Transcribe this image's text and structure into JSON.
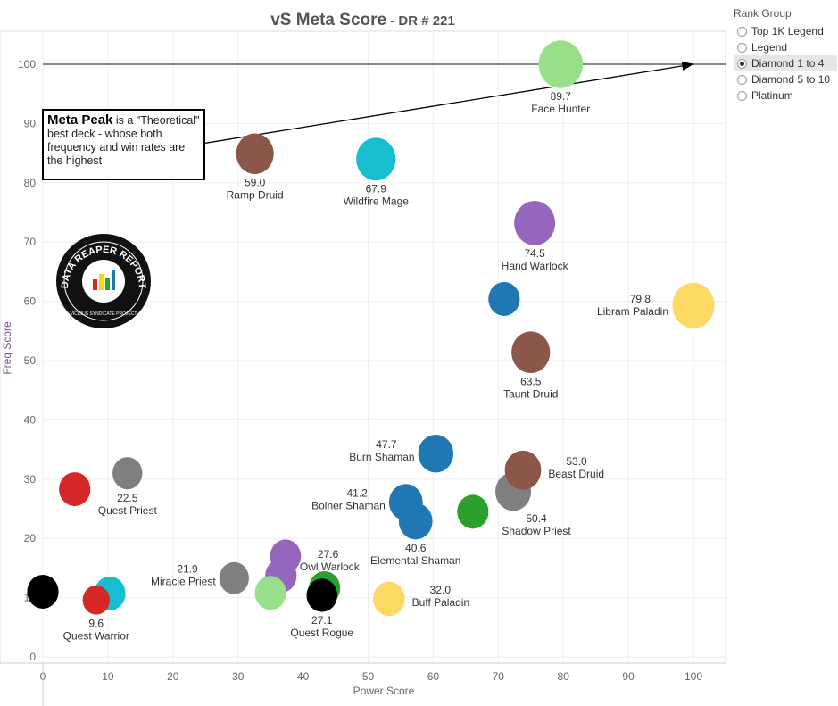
{
  "title": {
    "main": "vS Meta Score",
    "sub": " - DR # 221"
  },
  "legend": {
    "title": "Rank Group",
    "options": [
      {
        "label": "Top 1K Legend",
        "selected": false
      },
      {
        "label": "Legend",
        "selected": false
      },
      {
        "label": "Diamond 1 to 4",
        "selected": true
      },
      {
        "label": "Diamond 5 to 10",
        "selected": false
      },
      {
        "label": "Platinum",
        "selected": false
      }
    ]
  },
  "annotation": {
    "bold": "Meta Peak",
    "text": " is a \"Theoretical\" best deck - whose both frequency and win rates are the highest"
  },
  "logo": {
    "text": "DATA REAPER REPORT",
    "subtext": "VICIOUS SYNDICATE PROJECT"
  },
  "chart_data": {
    "type": "scatter",
    "title": "vS Meta Score - DR # 221",
    "xlabel": "Power Score",
    "ylabel": "Freq Score",
    "xlim": [
      0,
      105
    ],
    "ylim": [
      0,
      104
    ],
    "xticks": [
      0,
      10,
      20,
      30,
      40,
      50,
      60,
      70,
      80,
      90,
      100
    ],
    "yticks": [
      0,
      10,
      20,
      30,
      40,
      50,
      60,
      70,
      80,
      90,
      100
    ],
    "grid": true,
    "reference_line": {
      "y": 100
    },
    "points": [
      {
        "name": "Face Hunter",
        "score": "89.7",
        "x": 79.6,
        "y": 100,
        "color": "#98df8a",
        "label": "below"
      },
      {
        "name": "Ramp Druid",
        "score": "59.0",
        "x": 32.6,
        "y": 84.9,
        "color": "#8c564b",
        "label": "below"
      },
      {
        "name": "Wildfire Mage",
        "score": "67.9",
        "x": 51.2,
        "y": 84.0,
        "color": "#17becf",
        "label": "below"
      },
      {
        "name": "Hand Warlock",
        "score": "74.5",
        "x": 75.6,
        "y": 73.2,
        "color": "#9467bd",
        "label": "below"
      },
      {
        "name": "",
        "score": "",
        "x": 70.9,
        "y": 60.4,
        "color": "#1f77b4",
        "label": "none"
      },
      {
        "name": "Libram Paladin",
        "score": "79.8",
        "x": 100,
        "y": 59.3,
        "color": "#ffd966",
        "label": "left"
      },
      {
        "name": "Taunt Druid",
        "score": "63.5",
        "x": 75.0,
        "y": 51.4,
        "color": "#8c564b",
        "label": "below"
      },
      {
        "name": "Burn Shaman",
        "score": "47.7",
        "x": 60.4,
        "y": 34.3,
        "color": "#1f77b4",
        "label": "left"
      },
      {
        "name": "Shadow Priest",
        "score": "50.4",
        "x": 72.3,
        "y": 27.9,
        "color": "#7f7f7f",
        "label": "below-right"
      },
      {
        "name": "Beast Druid",
        "score": "53.0",
        "x": 73.8,
        "y": 31.5,
        "color": "#8c564b",
        "label": "right"
      },
      {
        "name": "",
        "score": "",
        "x": 66.1,
        "y": 24.5,
        "color": "#2ca02c",
        "label": "none"
      },
      {
        "name": "Bolner Shaman",
        "score": "41.2",
        "x": 55.8,
        "y": 26.1,
        "color": "#1f77b4",
        "label": "left"
      },
      {
        "name": "Elemental Shaman",
        "score": "40.6",
        "x": 57.3,
        "y": 22.9,
        "color": "#1f77b4",
        "label": "below"
      },
      {
        "name": "Quest Priest",
        "score": "22.5",
        "x": 13.0,
        "y": 31.0,
        "color": "#7f7f7f",
        "label": "below"
      },
      {
        "name": "",
        "score": "",
        "x": 4.9,
        "y": 28.3,
        "color": "#d62728",
        "label": "none"
      },
      {
        "name": "Owl Warlock",
        "score": "27.6",
        "x": 37.3,
        "y": 17.0,
        "color": "#9467bd",
        "label": "right"
      },
      {
        "name": "",
        "score": "",
        "x": 36.6,
        "y": 13.7,
        "color": "#9467bd",
        "label": "none"
      },
      {
        "name": "Miracle Priest",
        "score": "21.9",
        "x": 29.4,
        "y": 13.3,
        "color": "#7f7f7f",
        "label": "left"
      },
      {
        "name": "",
        "score": "",
        "x": 35.0,
        "y": 10.8,
        "color": "#98df8a",
        "label": "none"
      },
      {
        "name": "",
        "score": "",
        "x": 43.3,
        "y": 11.6,
        "color": "#2ca02c",
        "label": "none"
      },
      {
        "name": "Quest Rogue",
        "score": "27.1",
        "x": 42.9,
        "y": 10.4,
        "color": "#000000",
        "label": "below"
      },
      {
        "name": "Buff Paladin",
        "score": "32.0",
        "x": 53.2,
        "y": 9.8,
        "color": "#ffd966",
        "label": "right"
      },
      {
        "name": "",
        "score": "",
        "x": 10.3,
        "y": 10.7,
        "color": "#17becf",
        "label": "none"
      },
      {
        "name": "Quest Warrior",
        "score": "9.6",
        "x": 8.2,
        "y": 9.6,
        "color": "#d62728",
        "label": "below"
      },
      {
        "name": "",
        "score": "",
        "x": 0,
        "y": 11.0,
        "color": "#000000",
        "label": "none"
      }
    ]
  }
}
